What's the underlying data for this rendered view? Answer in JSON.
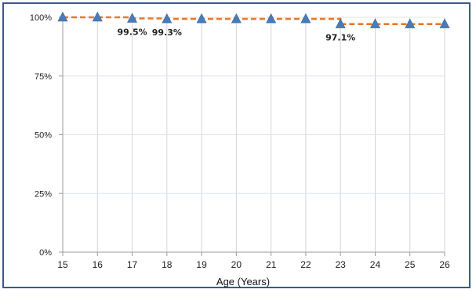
{
  "chart_data": {
    "type": "line",
    "title": "",
    "xlabel": "Age (Years)",
    "ylabel": "",
    "x": [
      15,
      16,
      17,
      18,
      19,
      20,
      21,
      22,
      23,
      24,
      25,
      26
    ],
    "x_tick_labels": [
      "15",
      "16",
      "17",
      "18",
      "19",
      "20",
      "21",
      "22",
      "23",
      "24",
      "25",
      "26"
    ],
    "y_tick_labels": [
      "0%",
      "25%",
      "50%",
      "75%",
      "100%"
    ],
    "y_ticks": [
      0,
      25,
      50,
      75,
      100
    ],
    "ylim": [
      0,
      100
    ],
    "xlim": [
      15,
      26
    ],
    "grid": true,
    "series": [
      {
        "marker": "triangle",
        "marker_color": "#4a7ab8",
        "values": [
          100,
          100,
          99.5,
          99.3,
          99.3,
          99.3,
          99.3,
          99.3,
          97.1,
          97.1,
          97.1,
          97.1
        ]
      }
    ],
    "step_line": {
      "style": "dashed",
      "color": "#e8792a",
      "x": [
        15,
        16,
        16,
        17,
        17,
        18,
        18,
        23,
        23,
        26
      ],
      "values": [
        100,
        100,
        100,
        100,
        99.5,
        99.5,
        99.3,
        99.3,
        97.1,
        97.1
      ]
    },
    "annotations": [
      {
        "x": 17,
        "y": 99.5,
        "text": "99.5%"
      },
      {
        "x": 18,
        "y": 99.3,
        "text": "99.3%"
      },
      {
        "x": 23,
        "y": 97.1,
        "text": "97.1%"
      }
    ]
  }
}
